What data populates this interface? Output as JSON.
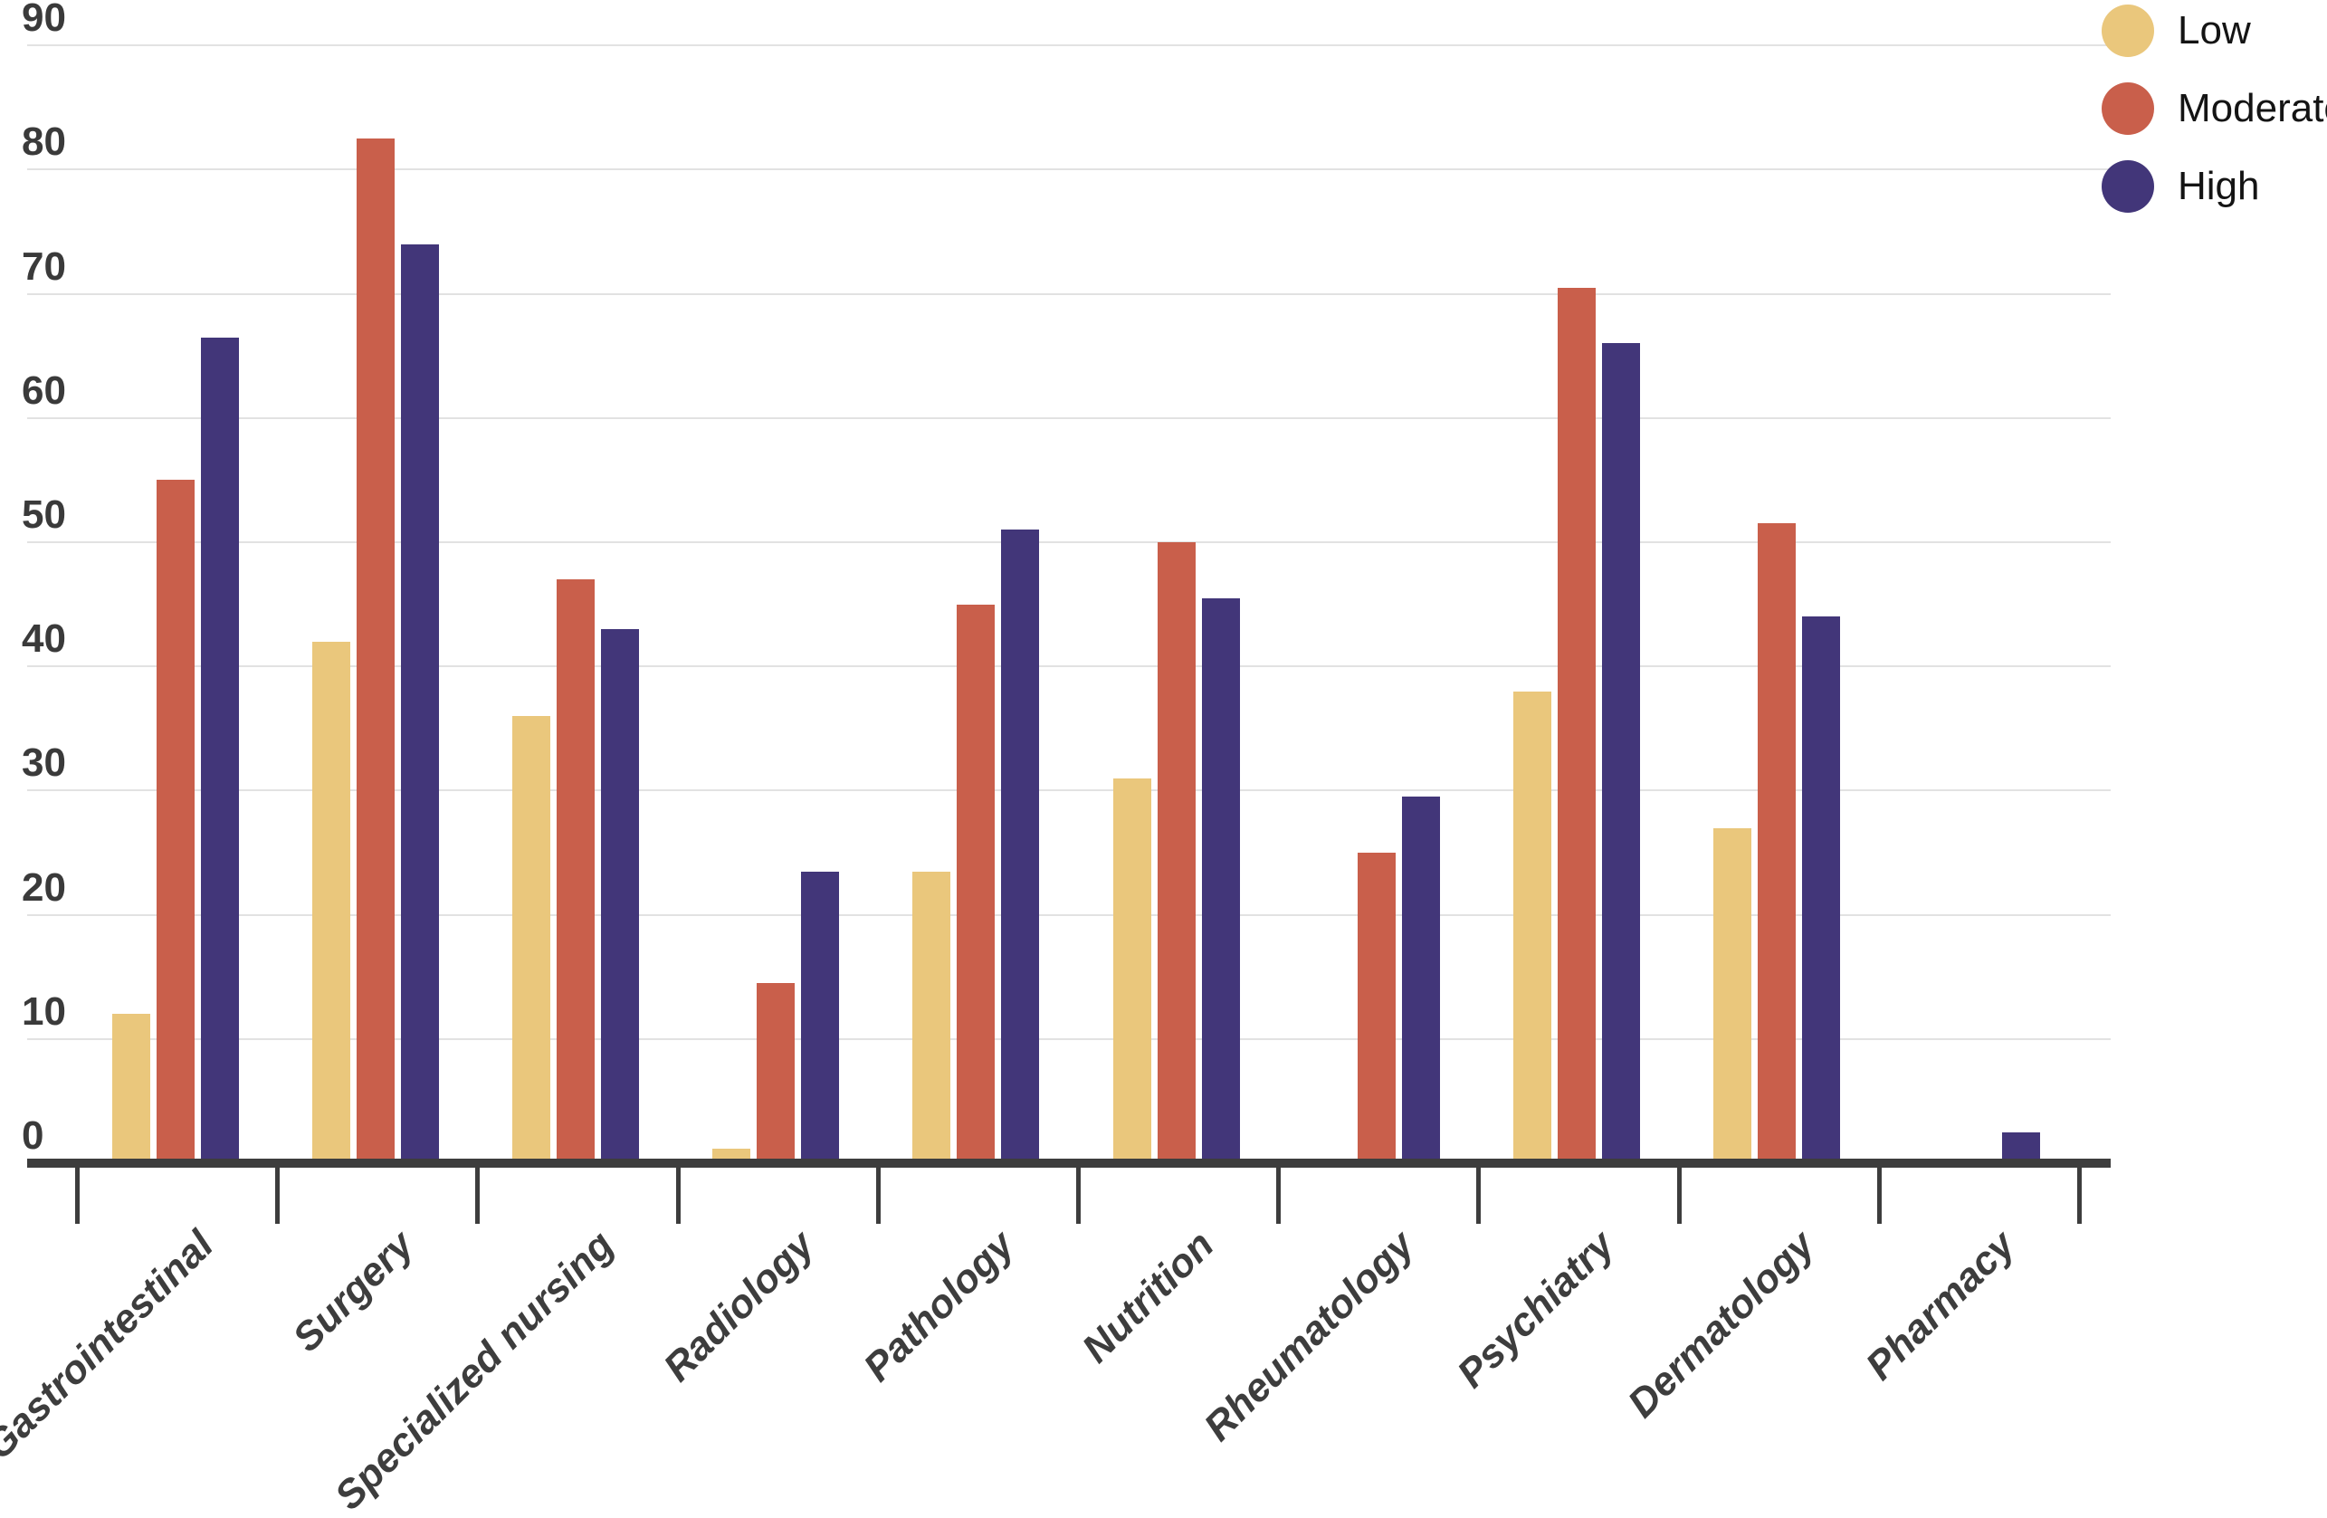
{
  "chart_data": {
    "type": "bar",
    "categories": [
      "Gastrointestinal",
      "Surgery",
      "Specialized nursing",
      "Radiology",
      "Pathology",
      "Nutrition",
      "Rheumatology",
      "Psychiatry",
      "Dermatology",
      "Pharmacy"
    ],
    "series": [
      {
        "name": "Low",
        "color": "#EAC77C",
        "values": [
          12,
          42,
          36,
          1.2,
          23.5,
          31,
          0,
          38,
          27,
          0
        ]
      },
      {
        "name": "Moderate",
        "color": "#C95F4B",
        "values": [
          55,
          82.5,
          47,
          14.5,
          45,
          50,
          25,
          70.5,
          51.5,
          0
        ]
      },
      {
        "name": "High",
        "color": "#423679",
        "values": [
          66.5,
          74,
          43,
          23.5,
          51,
          45.5,
          29.5,
          66,
          44,
          2.5
        ]
      }
    ],
    "ylim": [
      0,
      90
    ],
    "yticks": [
      0,
      10,
      20,
      30,
      40,
      50,
      60,
      70,
      80,
      90
    ],
    "grid": true,
    "legend_position": "top-right",
    "legend_labels": [
      "Low",
      "Moderate",
      "High"
    ],
    "axis_color": "#3d3d3d",
    "gridline_color": "#e2e2e2"
  }
}
